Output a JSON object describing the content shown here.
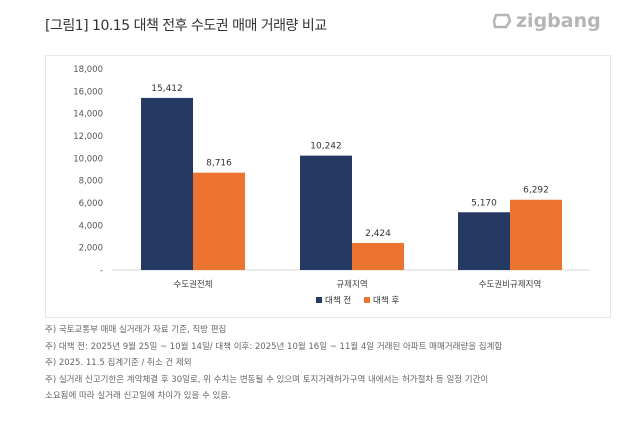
{
  "title": "[그림1] 10.15 대책 전후 수도권 매매 거래량 비교",
  "logo": "zigbang",
  "chart_data": {
    "type": "bar",
    "categories": [
      "수도권전체",
      "규제지역",
      "수도권비규제지역"
    ],
    "series": [
      {
        "name": "대책 전",
        "values": [
          15412,
          10242,
          5170
        ],
        "color": "#253A63"
      },
      {
        "name": "대책 후",
        "values": [
          8716,
          2424,
          6292
        ],
        "color": "#ED7330"
      }
    ],
    "ylim": [
      0,
      18000
    ],
    "yticks": [
      0,
      2000,
      4000,
      6000,
      8000,
      10000,
      12000,
      14000,
      16000,
      18000
    ],
    "zero_tick_label": "-",
    "legend": "bottom",
    "grid": false
  },
  "notes": [
    "주) 국토교통부 매매 실거래가 자료 기준, 직방 편집",
    "주) 대책 전: 2025년 9월 25일 ~ 10월 14일/ 대책 이후: 2025년 10월 16일 ~ 11월 4일 거래된 아파트 매매거래량을 집계함",
    "주) 2025. 11.5 집계기준 / 취소 건 제외",
    "주) 실거래 신고기한은 계약체결 후 30일로, 위 수치는 변동될 수 있으며 토지거래허가구역 내에서는 허가절차 등 일정 기간이",
    "소요됨에 따라 실거래 신고일에 차이가 있을 수 있음."
  ]
}
